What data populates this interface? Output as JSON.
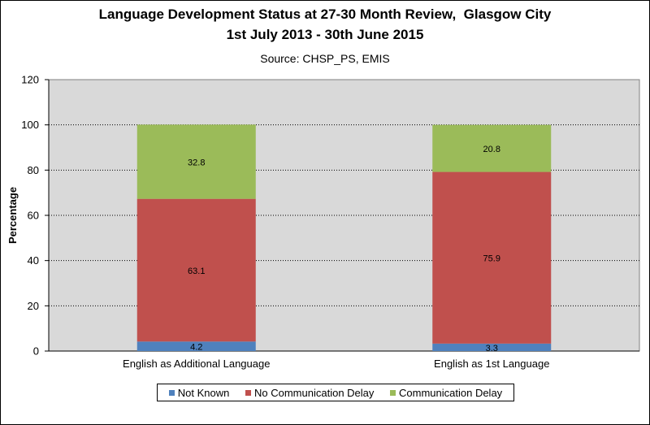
{
  "chart_data": {
    "type": "bar",
    "stacked": true,
    "title_line1": "Language Development Status at 27-30 Month Review,  Glasgow City",
    "title_line2": "1st July 2013 - 30th June 2015",
    "subtitle": "Source: CHSP_PS, EMIS",
    "xlabel": "",
    "ylabel": "Percentage",
    "ylim": [
      0,
      120
    ],
    "yticks": [
      "0",
      "20",
      "40",
      "60",
      "80",
      "100",
      "120"
    ],
    "categories": [
      "English as Additional Language",
      "English as 1st Language"
    ],
    "series": [
      {
        "name": "Not Known",
        "color": "#4f81bd",
        "values": [
          4.2,
          3.3
        ],
        "labels": [
          "4.2",
          "3.3"
        ]
      },
      {
        "name": "No Communication Delay",
        "color": "#c0504d",
        "values": [
          63.1,
          75.9
        ],
        "labels": [
          "63.1",
          "75.9"
        ]
      },
      {
        "name": "Communication Delay",
        "color": "#9bbb59",
        "values": [
          32.8,
          20.8
        ],
        "labels": [
          "32.8",
          "20.8"
        ]
      }
    ],
    "grid": "horizontal dotted",
    "plot_background": "#d9d9d9",
    "legend_position": "bottom"
  }
}
